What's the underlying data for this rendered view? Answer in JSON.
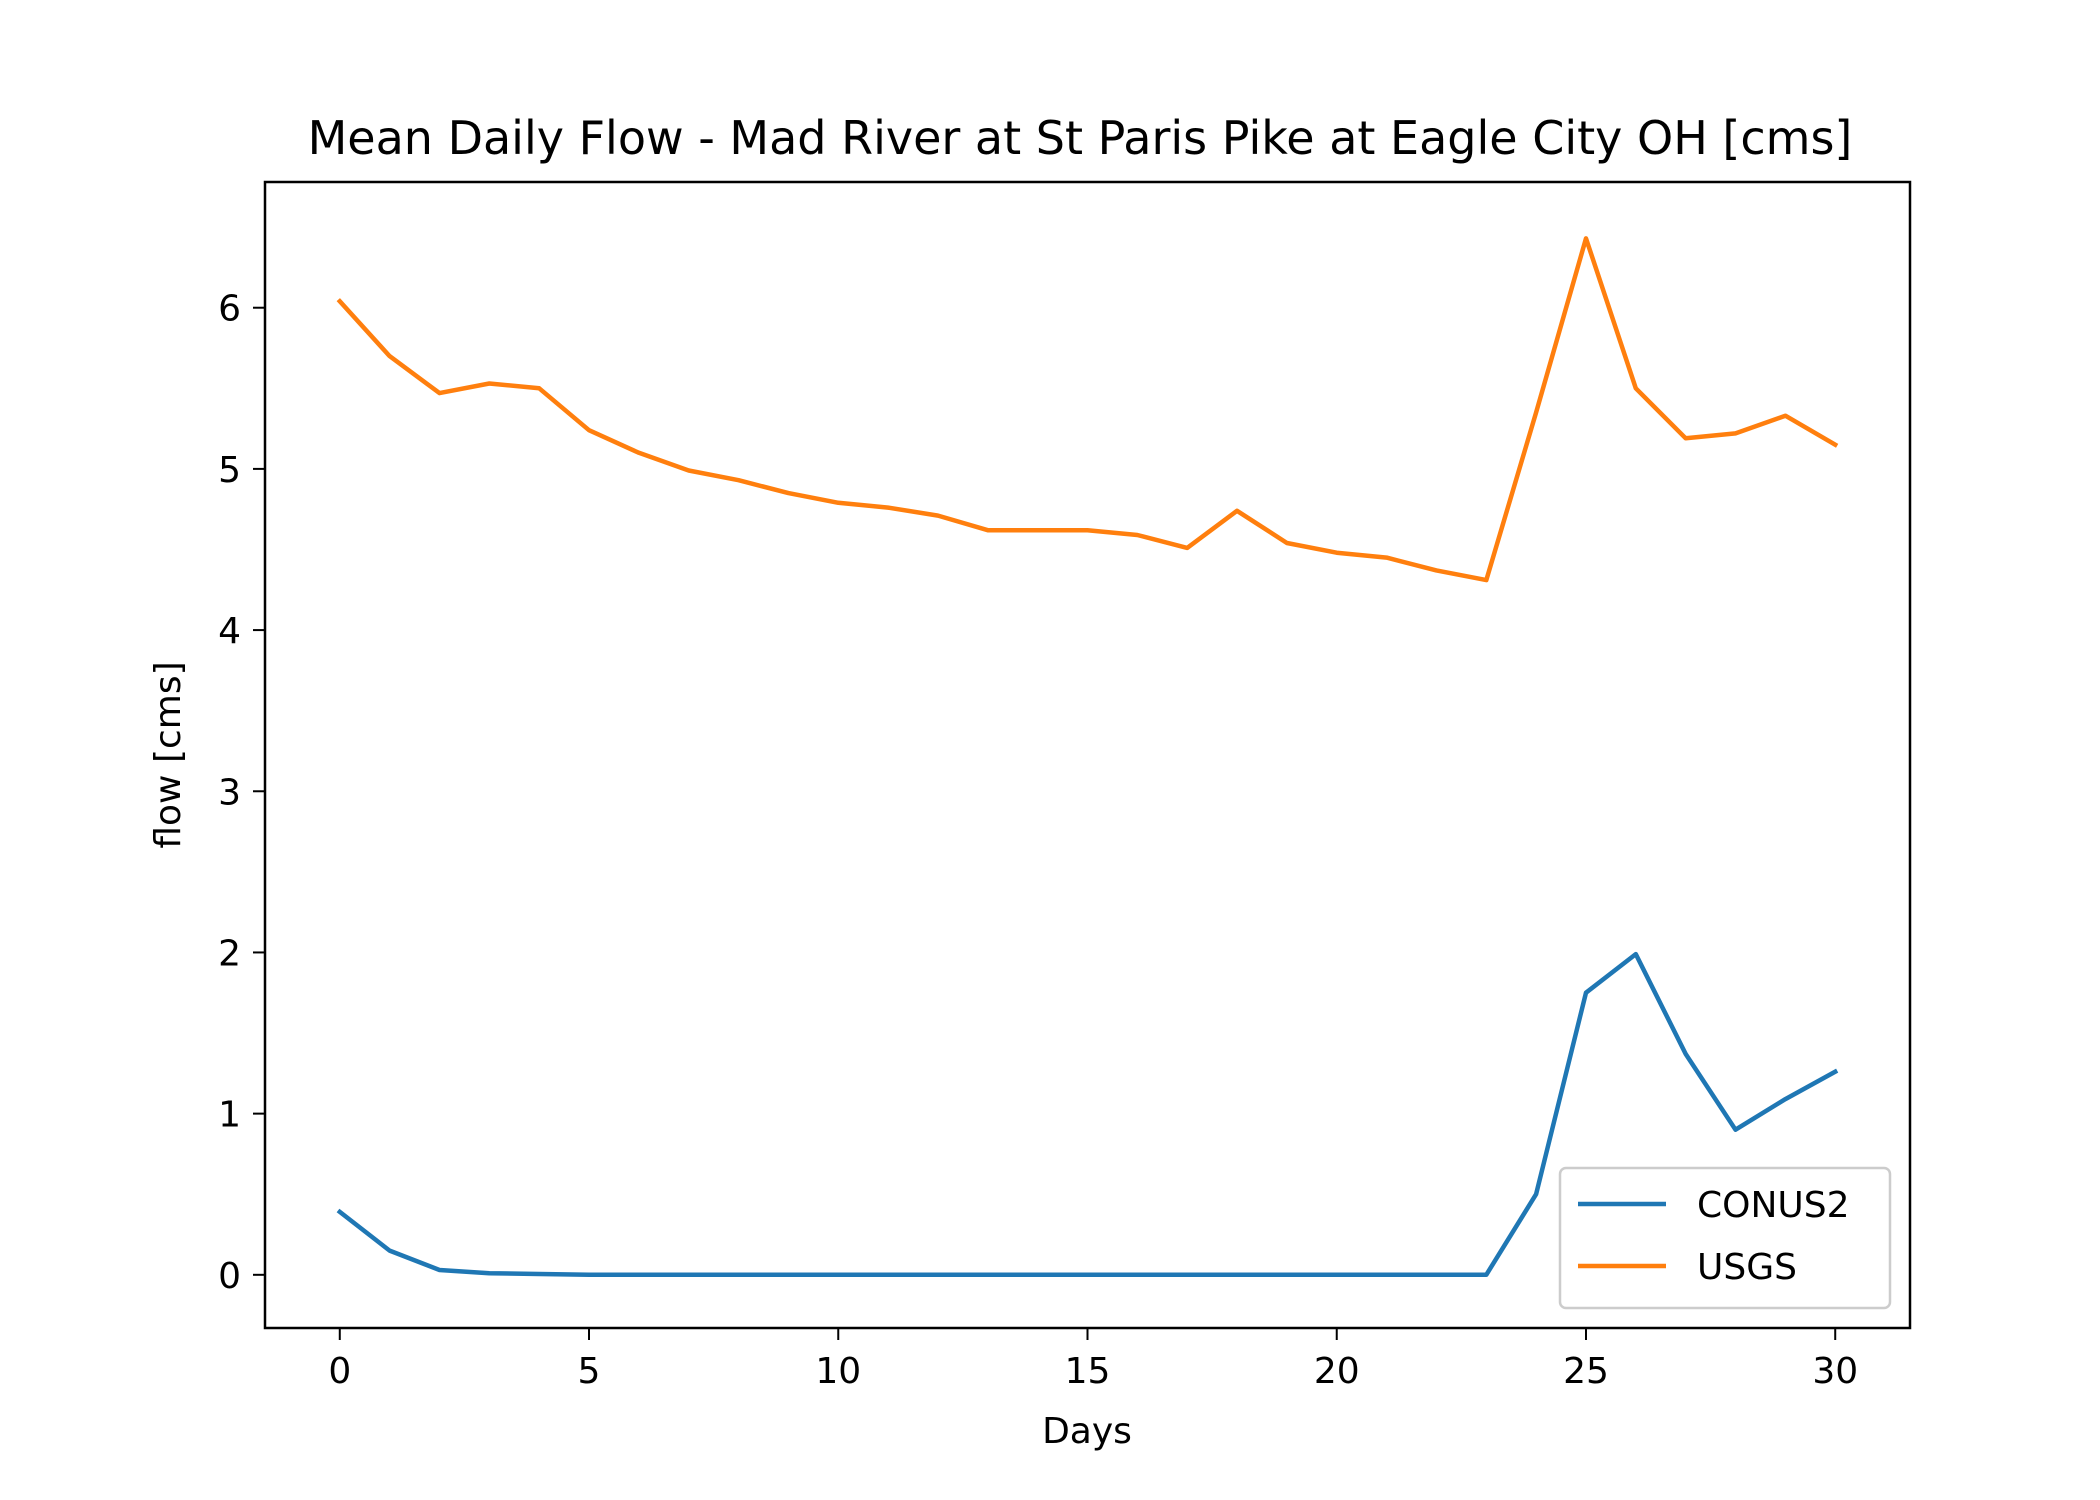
{
  "chart_data": {
    "type": "line",
    "title": "Mean Daily Flow - Mad River at St Paris Pike at Eagle City OH [cms]",
    "xlabel": "Days",
    "ylabel": "flow [cms]",
    "xlim": [
      -1.5,
      31.5
    ],
    "ylim": [
      -0.33,
      6.78
    ],
    "xticks": [
      0,
      5,
      10,
      15,
      20,
      25,
      30
    ],
    "yticks": [
      0,
      1,
      2,
      3,
      4,
      5,
      6
    ],
    "grid": false,
    "legend_position": "lower-right",
    "x": [
      0,
      1,
      2,
      3,
      4,
      5,
      6,
      7,
      8,
      9,
      10,
      11,
      12,
      13,
      14,
      15,
      16,
      17,
      18,
      19,
      20,
      21,
      22,
      23,
      24,
      25,
      26,
      27,
      28,
      29,
      30
    ],
    "series": [
      {
        "name": "CONUS2",
        "color": "#1f77b4",
        "values": [
          0.39,
          0.15,
          0.03,
          0.01,
          0.005,
          0,
          0,
          0,
          0,
          0,
          0,
          0,
          0,
          0,
          0,
          0,
          0,
          0,
          0,
          0,
          0,
          0,
          0,
          0,
          0.5,
          1.75,
          1.99,
          1.37,
          0.9,
          1.09,
          1.26
        ]
      },
      {
        "name": "USGS",
        "color": "#ff7f0e",
        "values": [
          6.04,
          5.7,
          5.47,
          5.53,
          5.5,
          5.24,
          5.1,
          4.99,
          4.93,
          4.85,
          4.79,
          4.76,
          4.71,
          4.62,
          4.62,
          4.62,
          4.59,
          4.51,
          4.74,
          4.54,
          4.48,
          4.45,
          4.37,
          4.31,
          5.35,
          6.43,
          5.5,
          5.19,
          5.22,
          5.33,
          5.15
        ]
      }
    ]
  }
}
